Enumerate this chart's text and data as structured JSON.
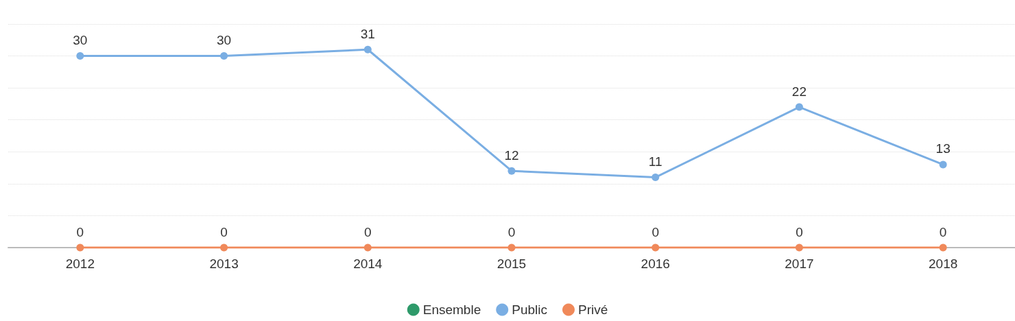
{
  "chart_data": {
    "type": "line",
    "categories": [
      "2012",
      "2013",
      "2014",
      "2015",
      "2016",
      "2017",
      "2018"
    ],
    "series": [
      {
        "name": "Ensemble",
        "color": "#2e9a6a",
        "values": [
          null,
          null,
          null,
          null,
          null,
          null,
          null
        ]
      },
      {
        "name": "Public",
        "color": "#7aaee3",
        "values": [
          30,
          30,
          31,
          12,
          11,
          22,
          13
        ]
      },
      {
        "name": "Privé",
        "color": "#f0895a",
        "values": [
          0,
          0,
          0,
          0,
          0,
          0,
          0
        ]
      }
    ],
    "ylim": [
      0,
      35
    ],
    "yticks": [
      {
        "value": 0,
        "label": null
      },
      {
        "value": 5,
        "label": null
      },
      {
        "value": 10,
        "label": null
      },
      {
        "value": 15,
        "label": null
      },
      {
        "value": 20,
        "label": null
      },
      {
        "value": 25,
        "label": null
      },
      {
        "value": 30,
        "label": null
      },
      {
        "value": 35,
        "label": null
      }
    ],
    "tick_labels": "x",
    "grid": "y",
    "legend": "bottom",
    "marker": "circle",
    "line_style": "solid",
    "data_labels": true
  }
}
